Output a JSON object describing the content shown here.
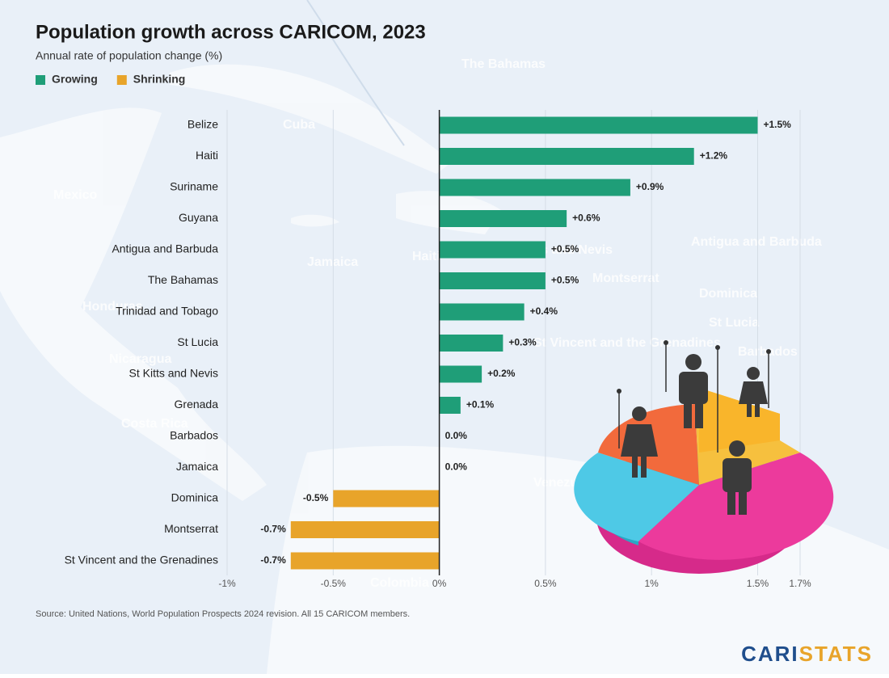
{
  "chart_data": {
    "type": "bar",
    "orientation": "horizontal",
    "title": "Population growth across CARICOM, 2023",
    "subtitle": "Annual rate of population change (%)",
    "legend": [
      {
        "name": "Growing",
        "color": "#1f9e78"
      },
      {
        "name": "Shrinking",
        "color": "#e8a42a"
      }
    ],
    "categories": [
      "Belize",
      "Haiti",
      "Suriname",
      "Guyana",
      "Antigua and Barbuda",
      "The Bahamas",
      "Trinidad and Tobago",
      "St Lucia",
      "St Kitts and Nevis",
      "Grenada",
      "Barbados",
      "Jamaica",
      "Dominica",
      "Montserrat",
      "St Vincent and the Grenadines"
    ],
    "values": [
      1.5,
      1.2,
      0.9,
      0.6,
      0.5,
      0.5,
      0.4,
      0.3,
      0.2,
      0.1,
      0.0,
      0.0,
      -0.5,
      -0.7,
      -0.7
    ],
    "value_labels": [
      "+1.5%",
      "+1.2%",
      "+0.9%",
      "+0.6%",
      "+0.5%",
      "+0.5%",
      "+0.4%",
      "+0.3%",
      "+0.2%",
      "+0.1%",
      "0.0%",
      "0.0%",
      "-0.5%",
      "-0.7%",
      "-0.7%"
    ],
    "xlim": [
      -1,
      1.7
    ],
    "xticks": [
      {
        "value": -1,
        "label": "-1%"
      },
      {
        "value": -0.5,
        "label": "-0.5%"
      },
      {
        "value": 0,
        "label": "0%"
      },
      {
        "value": 0.5,
        "label": "0.5%"
      },
      {
        "value": 1,
        "label": "1%"
      },
      {
        "value": 1.5,
        "label": "1.5%"
      },
      {
        "value": 1.7,
        "label": "1.7%"
      }
    ],
    "grid": true,
    "source": "Source: United Nations, World Population Prospects 2024 revision. All 15 CARICOM members.",
    "brand": [
      "CARI",
      "STATS"
    ],
    "map_labels": [
      "The Bahamas",
      "Cuba",
      "Mexico",
      "Jamaica",
      "Haiti",
      "Honduras",
      "Nicaragua",
      "Costa Rica",
      "Venezuela",
      "Colombia",
      "Antigua and Barbuda",
      "Dominica",
      "St Lucia",
      "Barbados",
      "St Kitts and Nevis",
      "Montserrat",
      "St Vincent and the Grenadines"
    ]
  }
}
